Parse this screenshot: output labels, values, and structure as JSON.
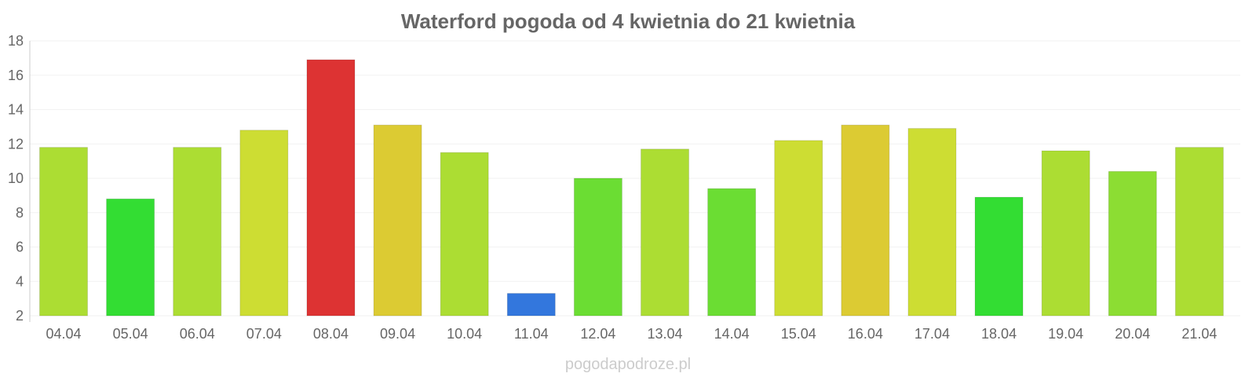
{
  "chart_data": {
    "type": "bar",
    "title": "Waterford pogoda od 4 kwietnia do 21 kwietnia",
    "xlabel": "",
    "ylabel": "",
    "ylim": [
      2,
      18
    ],
    "yticks": [
      2,
      4,
      6,
      8,
      10,
      12,
      14,
      16,
      18
    ],
    "grid": true,
    "categories": [
      "04.04",
      "05.04",
      "06.04",
      "07.04",
      "08.04",
      "09.04",
      "10.04",
      "11.04",
      "12.04",
      "13.04",
      "14.04",
      "15.04",
      "16.04",
      "17.04",
      "18.04",
      "19.04",
      "20.04",
      "21.04"
    ],
    "values": [
      11.8,
      8.8,
      11.8,
      12.8,
      16.9,
      13.1,
      11.5,
      3.3,
      10.0,
      11.7,
      9.4,
      12.2,
      13.1,
      12.9,
      8.9,
      11.6,
      10.4,
      11.8
    ],
    "colors": [
      "#acdd33",
      "#33dd33",
      "#acdd33",
      "#cddd33",
      "#dd3333",
      "#dccb33",
      "#acdd33",
      "#3377dd",
      "#6bdd33",
      "#acdd33",
      "#6bdd33",
      "#cddd33",
      "#dccb33",
      "#cddd33",
      "#33dd33",
      "#acdd33",
      "#8cdd33",
      "#acdd33"
    ]
  },
  "watermark": "pogodapodroze.pl"
}
